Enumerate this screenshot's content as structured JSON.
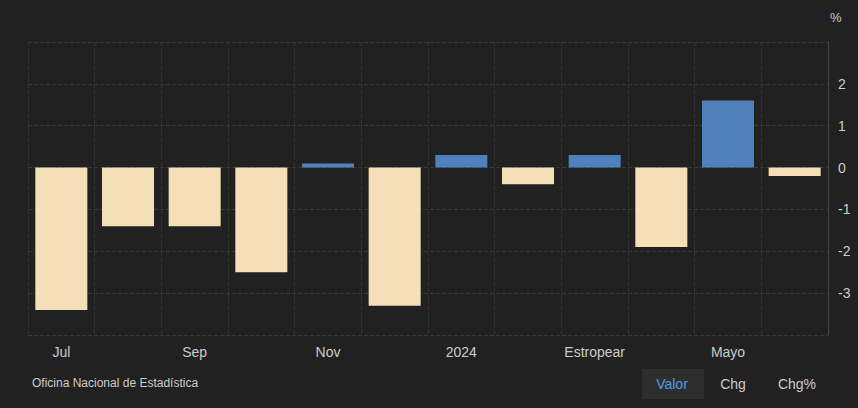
{
  "chart_data": {
    "type": "bar",
    "y_label": "%",
    "source": "Oficina Nacional de Estadística",
    "buttons": [
      "Valor",
      "Chg",
      "Chg%"
    ],
    "categories": [
      "Jul",
      null,
      "Sep",
      null,
      "Nov",
      null,
      "2024",
      null,
      "Estropear",
      null,
      "Mayo",
      null
    ],
    "values": [
      -3.4,
      -1.4,
      -1.4,
      -2.5,
      0.1,
      -3.3,
      0.3,
      -0.4,
      0.3,
      -1.9,
      1.6,
      -0.2
    ],
    "colors": [
      "#f5dfb8",
      "#f5dfb8",
      "#f5dfb8",
      "#f5dfb8",
      "#4f81bd",
      "#f5dfb8",
      "#4f81bd",
      "#f5dfb8",
      "#4f81bd",
      "#f5dfb8",
      "#4f81bd",
      "#f5dfb8"
    ],
    "ylim": [
      -4,
      3
    ],
    "yticks": [
      -3,
      -2,
      -1,
      0,
      1,
      2
    ],
    "grid": true
  }
}
